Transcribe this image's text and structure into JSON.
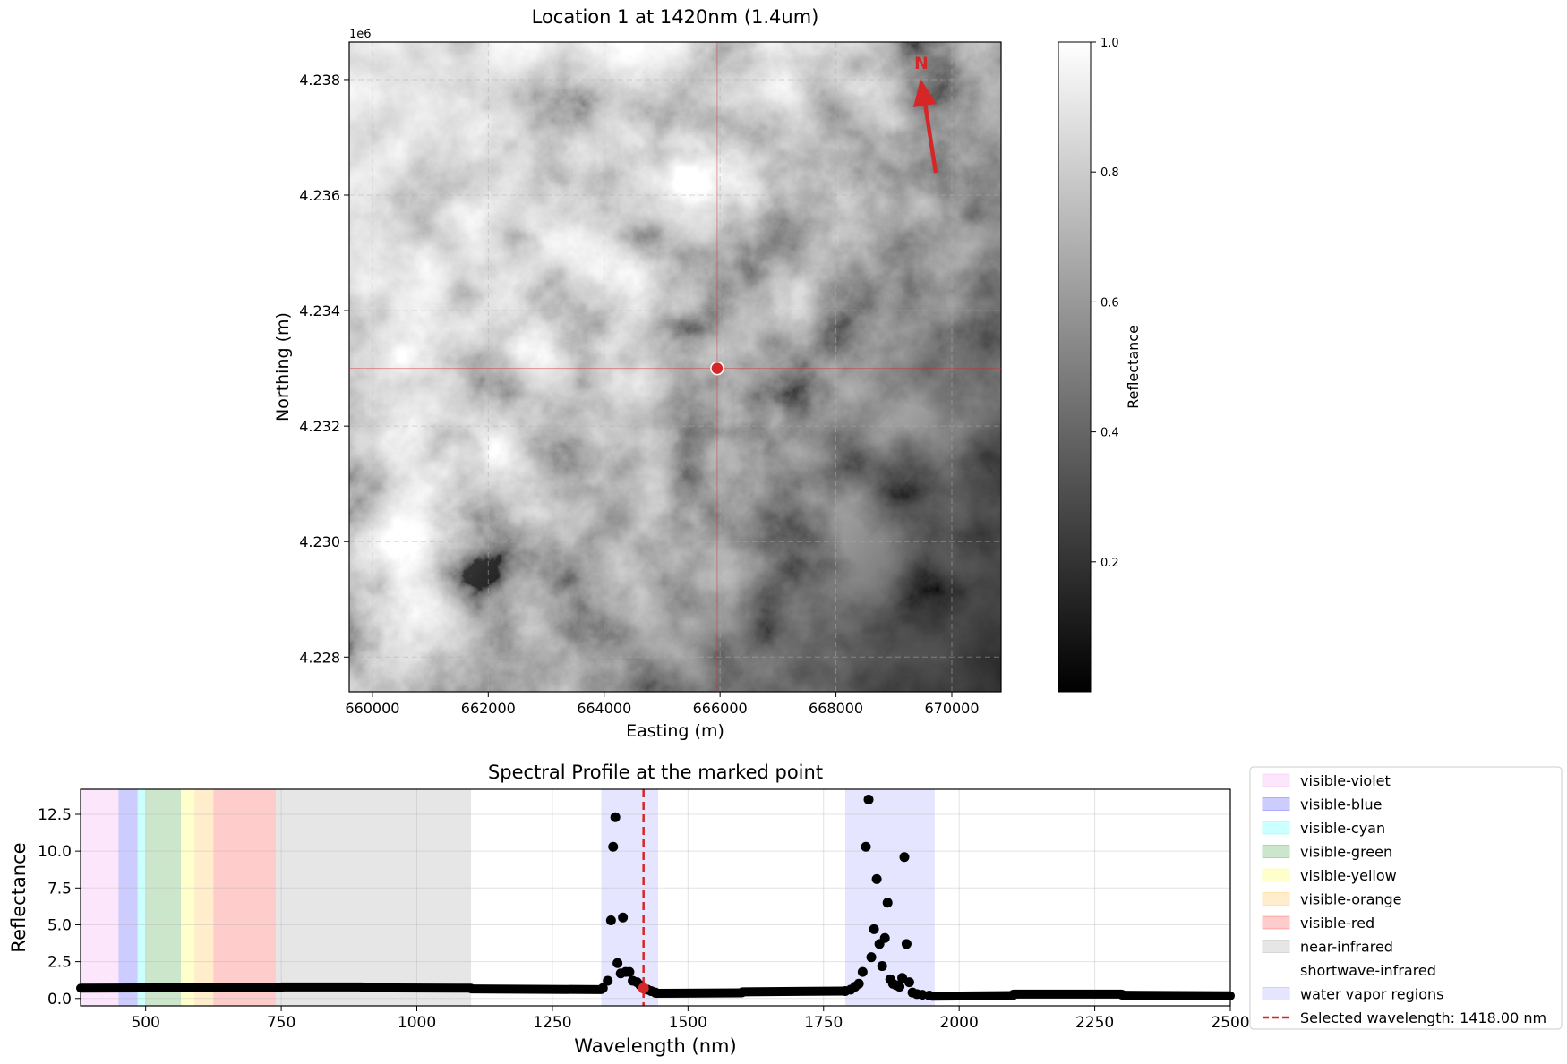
{
  "chart_data": [
    {
      "type": "heatmap",
      "title": "Location 1 at 1420nm (1.4um)",
      "xlabel": "Easting (m)",
      "ylabel": "Northing (m)",
      "xlim": [
        659600,
        670850
      ],
      "ylim": [
        4227400,
        4238650
      ],
      "y_offset_label": "1e6",
      "xticks": [
        660000,
        662000,
        664000,
        666000,
        668000,
        670000
      ],
      "xtick_labels": [
        "660000",
        "662000",
        "664000",
        "666000",
        "668000",
        "670000"
      ],
      "yticks": [
        4228000,
        4230000,
        4232000,
        4234000,
        4236000,
        4238000
      ],
      "ytick_labels": [
        "4.228",
        "4.230",
        "4.232",
        "4.234",
        "4.236",
        "4.238"
      ],
      "grid": true,
      "marked_point": {
        "x": 665950,
        "y": 4233000
      },
      "north_arrow_label": "N",
      "colormap": "gray",
      "colorbar": {
        "label": "Reflectance",
        "range": [
          0.0,
          1.0
        ],
        "ticks": [
          0.2,
          0.4,
          0.6,
          0.8,
          1.0
        ],
        "tick_labels": [
          "0.2",
          "0.4",
          "0.6",
          "0.8",
          "1.0"
        ]
      }
    },
    {
      "type": "scatter",
      "title": "Spectral Profile at the marked point",
      "xlabel": "Wavelength (nm)",
      "ylabel": "Reflectance",
      "xlim": [
        380,
        2500
      ],
      "ylim": [
        -0.5,
        14.2
      ],
      "xticks": [
        500,
        750,
        1000,
        1250,
        1500,
        1750,
        2000,
        2250,
        2500
      ],
      "xtick_labels": [
        "500",
        "750",
        "1000",
        "1250",
        "1500",
        "1750",
        "2000",
        "2250",
        "2500"
      ],
      "yticks": [
        0,
        2.5,
        5,
        7.5,
        10,
        12.5
      ],
      "ytick_labels": [
        "0.0",
        "2.5",
        "5.0",
        "7.5",
        "10.0",
        "12.5"
      ],
      "grid": true,
      "legend_position": "outside-right",
      "regions": [
        {
          "name": "visible-violet",
          "range": [
            380,
            450
          ],
          "color": "#ee82ee",
          "alpha": 0.2
        },
        {
          "name": "visible-blue",
          "range": [
            450,
            485
          ],
          "color": "#0000ff",
          "alpha": 0.2
        },
        {
          "name": "visible-cyan",
          "range": [
            485,
            500
          ],
          "color": "#00ffff",
          "alpha": 0.2
        },
        {
          "name": "visible-green",
          "range": [
            500,
            565
          ],
          "color": "#008000",
          "alpha": 0.2
        },
        {
          "name": "visible-yellow",
          "range": [
            565,
            590
          ],
          "color": "#ffff00",
          "alpha": 0.2
        },
        {
          "name": "visible-orange",
          "range": [
            590,
            625
          ],
          "color": "#ffa500",
          "alpha": 0.2
        },
        {
          "name": "visible-red",
          "range": [
            625,
            740
          ],
          "color": "#ff0000",
          "alpha": 0.2
        },
        {
          "name": "near-infrared",
          "range": [
            740,
            1100
          ],
          "color": "#808080",
          "alpha": 0.2
        },
        {
          "name": "shortwave-infrared",
          "range": [
            1100,
            2500
          ],
          "color": "#ffffff",
          "alpha": 0.0
        },
        {
          "name": "water vapor regions",
          "ranges": [
            [
              1340,
              1445
            ],
            [
              1790,
              1955
            ]
          ],
          "color": "#0000ff",
          "alpha": 0.1
        }
      ],
      "selected_wavelength": {
        "label": "Selected wavelength: 1418.00 nm",
        "value": 1418,
        "color": "#d62728"
      },
      "selected_point": {
        "x": 1418,
        "y": 0.7
      },
      "baseline_segments": [
        {
          "x0": 380,
          "x1": 750,
          "y0": 0.7,
          "y1": 0.75
        },
        {
          "x0": 750,
          "x1": 900,
          "y0": 0.78,
          "y1": 0.78
        },
        {
          "x0": 900,
          "x1": 1100,
          "y0": 0.72,
          "y1": 0.7
        },
        {
          "x0": 1100,
          "x1": 1340,
          "y0": 0.65,
          "y1": 0.6
        },
        {
          "x0": 1440,
          "x1": 1600,
          "y0": 0.35,
          "y1": 0.38
        },
        {
          "x0": 1600,
          "x1": 1790,
          "y0": 0.45,
          "y1": 0.5
        },
        {
          "x0": 1950,
          "x1": 2100,
          "y0": 0.15,
          "y1": 0.2
        },
        {
          "x0": 2100,
          "x1": 2300,
          "y0": 0.3,
          "y1": 0.3
        },
        {
          "x0": 2300,
          "x1": 2500,
          "y0": 0.22,
          "y1": 0.18
        }
      ],
      "points": [
        [
          1343,
          0.7
        ],
        [
          1352,
          1.2
        ],
        [
          1358,
          5.3
        ],
        [
          1362,
          10.3
        ],
        [
          1366,
          12.3
        ],
        [
          1370,
          2.4
        ],
        [
          1376,
          1.7
        ],
        [
          1380,
          5.5
        ],
        [
          1385,
          1.8
        ],
        [
          1392,
          1.8
        ],
        [
          1398,
          1.2
        ],
        [
          1406,
          1.1
        ],
        [
          1412,
          0.9
        ],
        [
          1418,
          0.7
        ],
        [
          1425,
          0.6
        ],
        [
          1432,
          0.5
        ],
        [
          1440,
          0.4
        ],
        [
          1790,
          0.5
        ],
        [
          1800,
          0.6
        ],
        [
          1808,
          0.8
        ],
        [
          1815,
          1.0
        ],
        [
          1822,
          1.8
        ],
        [
          1828,
          10.3
        ],
        [
          1833,
          13.5
        ],
        [
          1838,
          2.8
        ],
        [
          1843,
          4.7
        ],
        [
          1848,
          8.1
        ],
        [
          1853,
          3.7
        ],
        [
          1858,
          2.2
        ],
        [
          1863,
          4.1
        ],
        [
          1868,
          6.5
        ],
        [
          1873,
          1.3
        ],
        [
          1878,
          1.0
        ],
        [
          1884,
          0.9
        ],
        [
          1890,
          0.8
        ],
        [
          1895,
          1.4
        ],
        [
          1899,
          9.6
        ],
        [
          1903,
          3.7
        ],
        [
          1908,
          1.1
        ],
        [
          1914,
          0.4
        ],
        [
          1922,
          0.3
        ],
        [
          1932,
          0.25
        ],
        [
          1945,
          0.2
        ]
      ]
    }
  ]
}
